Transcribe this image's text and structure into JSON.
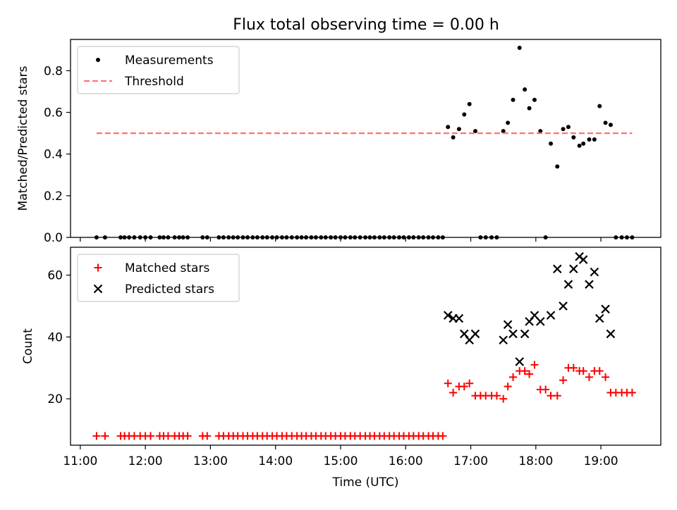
{
  "figure": {
    "title": "Flux total observing time = 0.00 h"
  },
  "chart_data": [
    {
      "type": "scatter",
      "title": "Flux total observing time = 0.00 h",
      "xlabel": "",
      "ylabel": "Matched/Predicted stars",
      "xlim": [
        10.85,
        19.92
      ],
      "ylim": [
        0,
        0.95
      ],
      "yticks": [
        0.0,
        0.2,
        0.4,
        0.6,
        0.8
      ],
      "ytick_labels": [
        "0.0",
        "0.2",
        "0.4",
        "0.6",
        "0.8"
      ],
      "legend": {
        "placement": "top-left"
      },
      "series": [
        {
          "name": "Measurements",
          "kind": "scatter",
          "marker": "dot",
          "color": "#000000",
          "x": [
            11.25,
            11.38,
            11.62,
            11.68,
            11.75,
            11.83,
            11.92,
            12.0,
            12.08,
            12.22,
            12.28,
            12.35,
            12.45,
            12.52,
            12.58,
            12.65,
            12.88,
            12.95,
            13.13,
            13.2,
            13.28,
            13.35,
            13.42,
            13.5,
            13.57,
            13.65,
            13.72,
            13.8,
            13.87,
            13.95,
            14.02,
            14.1,
            14.17,
            14.25,
            14.33,
            14.4,
            14.47,
            14.55,
            14.62,
            14.7,
            14.77,
            14.85,
            14.92,
            15.0,
            15.07,
            15.15,
            15.22,
            15.3,
            15.38,
            15.45,
            15.52,
            15.6,
            15.67,
            15.75,
            15.82,
            15.9,
            15.97,
            16.05,
            16.12,
            16.2,
            16.27,
            16.35,
            16.42,
            16.5,
            16.57,
            16.65,
            16.73,
            16.82,
            16.9,
            16.98,
            17.07,
            17.15,
            17.23,
            17.32,
            17.4,
            17.5,
            17.57,
            17.65,
            17.75,
            17.83,
            17.9,
            17.98,
            18.07,
            18.15,
            18.23,
            18.33,
            18.42,
            18.5,
            18.58,
            18.67,
            18.73,
            18.82,
            18.9,
            18.98,
            19.07,
            19.15,
            19.23,
            19.32,
            19.4,
            19.48
          ],
          "y": [
            0,
            0,
            0,
            0,
            0,
            0,
            0,
            0,
            0,
            0,
            0,
            0,
            0,
            0,
            0,
            0,
            0,
            0,
            0,
            0,
            0,
            0,
            0,
            0,
            0,
            0,
            0,
            0,
            0,
            0,
            0,
            0,
            0,
            0,
            0,
            0,
            0,
            0,
            0,
            0,
            0,
            0,
            0,
            0,
            0,
            0,
            0,
            0,
            0,
            0,
            0,
            0,
            0,
            0,
            0,
            0,
            0,
            0,
            0,
            0,
            0,
            0,
            0,
            0,
            0,
            0.53,
            0.48,
            0.52,
            0.59,
            0.64,
            0.51,
            0,
            0,
            0,
            0,
            0.51,
            0.55,
            0.66,
            0.91,
            0.71,
            0.62,
            0.66,
            0.51,
            0,
            0.45,
            0.34,
            0.52,
            0.53,
            0.48,
            0.44,
            0.45,
            0.47,
            0.47,
            0.63,
            0.55,
            0.54,
            0,
            0,
            0,
            0
          ]
        },
        {
          "name": "Threshold",
          "kind": "line",
          "dash": true,
          "color": "#ff7373",
          "x": [
            11.25,
            19.48
          ],
          "y": [
            0.5,
            0.5
          ]
        }
      ]
    },
    {
      "type": "scatter",
      "title": "",
      "xlabel": "Time (UTC)",
      "ylabel": "Count",
      "xlim": [
        10.85,
        19.92
      ],
      "ylim": [
        5,
        69
      ],
      "xticks": [
        11,
        12,
        13,
        14,
        15,
        16,
        17,
        18,
        19
      ],
      "xtick_labels": [
        "11:00",
        "12:00",
        "13:00",
        "14:00",
        "15:00",
        "16:00",
        "17:00",
        "18:00",
        "19:00"
      ],
      "yticks": [
        20,
        40,
        60
      ],
      "ytick_labels": [
        "20",
        "40",
        "60"
      ],
      "legend": {
        "placement": "top-left"
      },
      "series": [
        {
          "name": "Matched stars",
          "kind": "scatter",
          "marker": "plus",
          "color": "#ff0000",
          "x": [
            11.25,
            11.38,
            11.62,
            11.68,
            11.75,
            11.83,
            11.92,
            12.0,
            12.08,
            12.22,
            12.28,
            12.35,
            12.45,
            12.52,
            12.58,
            12.65,
            12.88,
            12.95,
            13.13,
            13.2,
            13.28,
            13.35,
            13.42,
            13.5,
            13.57,
            13.65,
            13.72,
            13.8,
            13.87,
            13.95,
            14.02,
            14.1,
            14.17,
            14.25,
            14.33,
            14.4,
            14.47,
            14.55,
            14.62,
            14.7,
            14.77,
            14.85,
            14.92,
            15.0,
            15.07,
            15.15,
            15.22,
            15.3,
            15.38,
            15.45,
            15.52,
            15.6,
            15.67,
            15.75,
            15.82,
            15.9,
            15.97,
            16.05,
            16.12,
            16.2,
            16.27,
            16.35,
            16.42,
            16.5,
            16.57,
            16.65,
            16.73,
            16.82,
            16.9,
            16.98,
            17.07,
            17.15,
            17.23,
            17.32,
            17.4,
            17.5,
            17.57,
            17.65,
            17.75,
            17.83,
            17.9,
            17.98,
            18.07,
            18.15,
            18.23,
            18.33,
            18.42,
            18.5,
            18.58,
            18.67,
            18.73,
            18.82,
            18.9,
            18.98,
            19.07,
            19.15,
            19.23,
            19.32,
            19.4,
            19.48
          ],
          "y": [
            8,
            8,
            8,
            8,
            8,
            8,
            8,
            8,
            8,
            8,
            8,
            8,
            8,
            8,
            8,
            8,
            8,
            8,
            8,
            8,
            8,
            8,
            8,
            8,
            8,
            8,
            8,
            8,
            8,
            8,
            8,
            8,
            8,
            8,
            8,
            8,
            8,
            8,
            8,
            8,
            8,
            8,
            8,
            8,
            8,
            8,
            8,
            8,
            8,
            8,
            8,
            8,
            8,
            8,
            8,
            8,
            8,
            8,
            8,
            8,
            8,
            8,
            8,
            8,
            8,
            25,
            22,
            24,
            24,
            25,
            21,
            21,
            21,
            21,
            21,
            20,
            24,
            27,
            29,
            29,
            28,
            31,
            23,
            23,
            21,
            21,
            26,
            30,
            30,
            29,
            29,
            27,
            29,
            29,
            27,
            22,
            22,
            22,
            22,
            22
          ]
        },
        {
          "name": "Predicted stars",
          "kind": "scatter",
          "marker": "x",
          "color": "#000000",
          "x": [
            16.65,
            16.73,
            16.82,
            16.9,
            16.98,
            17.07,
            17.5,
            17.57,
            17.65,
            17.75,
            17.83,
            17.9,
            17.98,
            18.07,
            18.23,
            18.33,
            18.42,
            18.5,
            18.58,
            18.67,
            18.73,
            18.82,
            18.9,
            18.98,
            19.07,
            19.15
          ],
          "y": [
            47,
            46,
            46,
            41,
            39,
            41,
            39,
            44,
            41,
            32,
            41,
            45,
            47,
            45,
            47,
            62,
            50,
            57,
            62,
            66,
            65,
            57,
            61,
            46,
            49,
            41
          ]
        }
      ]
    }
  ]
}
